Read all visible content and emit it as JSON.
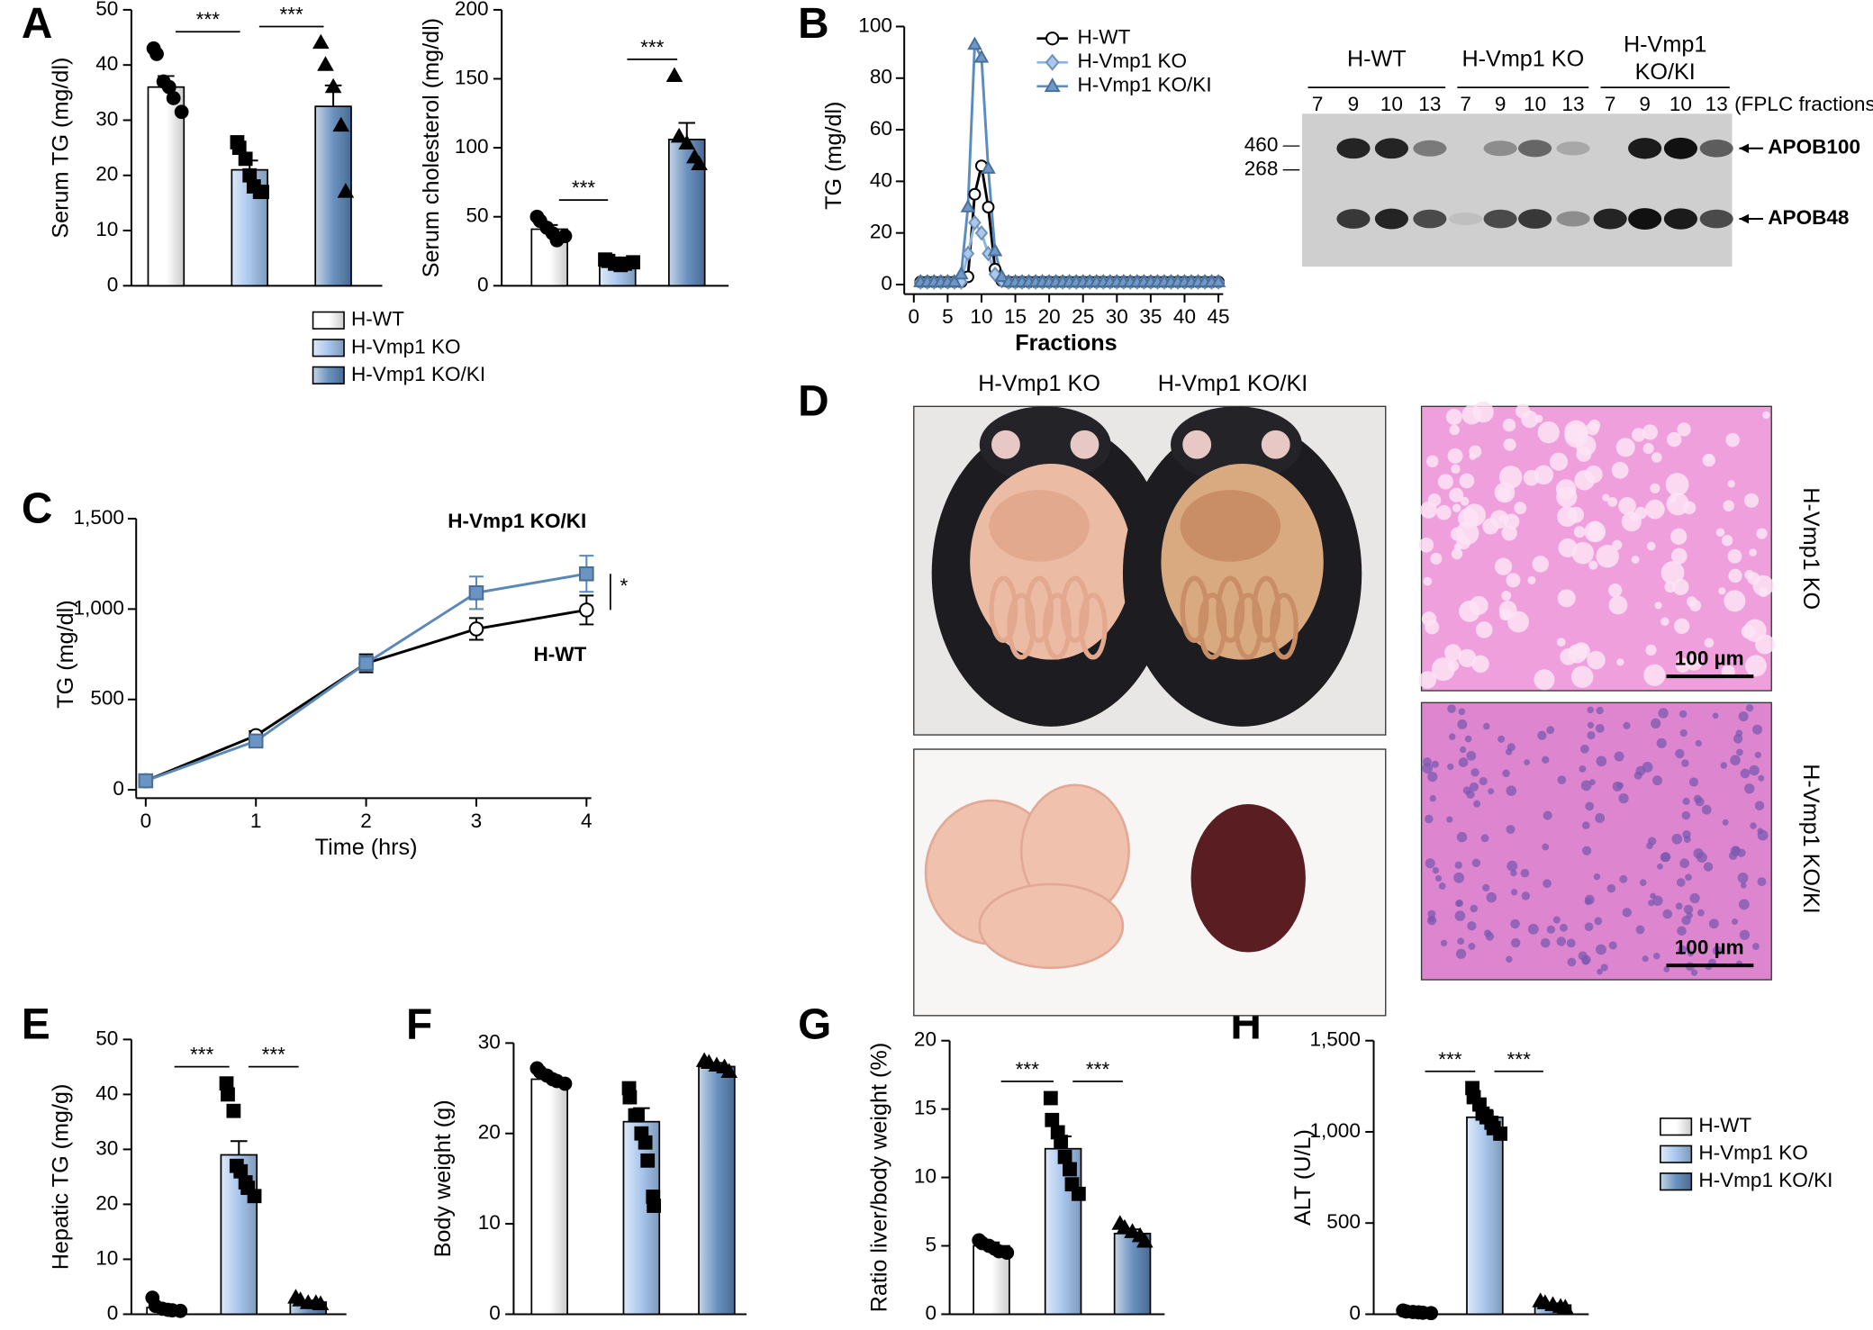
{
  "chart_data": [
    {
      "type": "bar",
      "label": "A",
      "ylabel": "Serum TG (mg/dl)",
      "ylim": [
        0,
        50
      ],
      "yticks": [
        0,
        10,
        20,
        30,
        40,
        50
      ],
      "colors": [
        "#ffffff",
        "#9ec0ea",
        "#5a86b8"
      ],
      "values": [
        36,
        21,
        32.5
      ],
      "errors": [
        2,
        1.7,
        3.8
      ],
      "points": [
        [
          43,
          42,
          37,
          36,
          34,
          31.5
        ],
        [
          26,
          25,
          23,
          20,
          18,
          17,
          17
        ],
        [
          44,
          40,
          36,
          29,
          17
        ]
      ],
      "annotations": [
        "***",
        "***"
      ],
      "legend": [
        "H-WT",
        "H-Vmp1 KO",
        "H-Vmp1 KO/KI"
      ]
    },
    {
      "type": "bar",
      "ylabel": "Serum cholesterol (mg/dl)",
      "ylim": [
        0,
        200
      ],
      "yticks": [
        0,
        50,
        100,
        150,
        200
      ],
      "colors": [
        "#ffffff",
        "#9ec0ea",
        "#5a86b8"
      ],
      "values": [
        41,
        16,
        106
      ],
      "errors": [
        3,
        1,
        12
      ],
      "points": [
        [
          50,
          47,
          42,
          38,
          33,
          36
        ],
        [
          19,
          18,
          16,
          15,
          16,
          17
        ],
        [
          152,
          108,
          103,
          93,
          88
        ]
      ],
      "annotations": [
        "***",
        "***"
      ]
    },
    {
      "type": "line",
      "label": "B",
      "ylabel": "TG (mg/dl)",
      "xlabel": "Fractions",
      "xlim": [
        0,
        45
      ],
      "xticks": [
        0,
        5,
        10,
        15,
        20,
        25,
        30,
        35,
        40,
        45
      ],
      "ylim": [
        0,
        100
      ],
      "yticks": [
        0,
        20,
        40,
        60,
        80,
        100
      ],
      "legend": "upper-left",
      "x": [
        1,
        2,
        3,
        4,
        5,
        6,
        7,
        8,
        9,
        10,
        11,
        12,
        13,
        14,
        15,
        16,
        17,
        18,
        19,
        20,
        21,
        22,
        23,
        24,
        25,
        26,
        27,
        28,
        29,
        30,
        31,
        32,
        33,
        34,
        35,
        36,
        37,
        38,
        39,
        40,
        41,
        42,
        43,
        44,
        45
      ],
      "series": [
        {
          "name": "H-WT",
          "color": "#000000",
          "marker": "circle",
          "marker_fill": "#ffffff",
          "values": [
            1,
            1,
            1,
            1,
            1,
            1,
            1,
            3,
            35,
            46,
            30,
            6,
            1.5,
            1,
            1,
            1,
            1,
            1,
            1,
            1,
            1,
            1,
            1,
            1,
            1,
            1,
            1,
            1,
            1,
            1,
            1,
            1,
            1,
            1,
            1,
            1,
            1,
            1,
            1,
            1,
            1,
            1,
            1,
            1,
            1
          ]
        },
        {
          "name": "H-Vmp1 KO",
          "color": "#8db4e2",
          "marker": "diamond",
          "marker_fill": "#a9c8ee",
          "values": [
            1,
            1,
            1,
            1,
            1,
            1,
            1,
            12,
            24,
            20,
            12,
            4,
            1.5,
            1,
            1,
            1,
            1,
            1,
            1,
            1,
            1,
            1,
            1,
            1,
            1,
            1,
            1,
            1,
            1,
            1,
            1,
            1,
            1,
            1,
            1,
            1,
            1,
            1,
            1,
            1,
            1,
            1,
            1,
            1,
            1
          ]
        },
        {
          "name": "H-Vmp1 KO/KI",
          "color": "#5b8cc0",
          "marker": "triangle",
          "marker_fill": "#6f98c6",
          "values": [
            1,
            1,
            1,
            1,
            1,
            1,
            4,
            30,
            93,
            88,
            45,
            13,
            3,
            1,
            1,
            1,
            1,
            1,
            1,
            1,
            1,
            1,
            1,
            1,
            1,
            1,
            1,
            1,
            1,
            1,
            1,
            1,
            1,
            1,
            1,
            1,
            1,
            1,
            1,
            1,
            1,
            1,
            1,
            1,
            1
          ]
        }
      ]
    },
    {
      "type": "line",
      "label": "C",
      "ylabel": "TG (mg/dl)",
      "xlabel": "Time (hrs)",
      "xlim": [
        0,
        4
      ],
      "xticks": [
        0,
        1,
        2,
        3,
        4
      ],
      "ylim": [
        0,
        1500
      ],
      "yticks": [
        0,
        500,
        {
          "value": 1000,
          "label": "1,000"
        },
        {
          "value": 1500,
          "label": "1,500"
        }
      ],
      "legend": "direct",
      "annotation": "*",
      "x": [
        0,
        1,
        2,
        3,
        4
      ],
      "series": [
        {
          "name": "H-WT",
          "color": "#000000",
          "marker": "circle",
          "marker_fill": "#ffffff",
          "values": [
            50,
            300,
            700,
            890,
            995
          ],
          "errors": [
            10,
            25,
            50,
            60,
            80
          ]
        },
        {
          "name": "H-Vmp1 KO/KI",
          "color": "#5b88b8",
          "marker": "square",
          "marker_fill": "#6a95c2",
          "values": [
            50,
            270,
            700,
            1090,
            1195
          ],
          "errors": [
            10,
            20,
            40,
            90,
            100
          ]
        }
      ]
    },
    {
      "type": "bar",
      "label": "E",
      "ylabel": "Hepatic TG (mg/g)",
      "ylim": [
        0,
        50
      ],
      "yticks": [
        0,
        10,
        20,
        30,
        40,
        50
      ],
      "colors": [
        "#ffffff",
        "#9ec0ea",
        "#5a86b8"
      ],
      "values": [
        1.2,
        29,
        2.2
      ],
      "errors": [
        0.3,
        2.5,
        0.3
      ],
      "points": [
        [
          3,
          1.5,
          1,
          0.8,
          0.7,
          0.6
        ],
        [
          42,
          40,
          37,
          27,
          26,
          24,
          23,
          21.5
        ],
        [
          3,
          2.5,
          2,
          2,
          1.8
        ]
      ],
      "annotations": [
        "***",
        "***"
      ]
    },
    {
      "type": "bar",
      "label": "F",
      "ylabel": "Body weight (g)",
      "ylim": [
        0,
        30
      ],
      "yticks": [
        0,
        10,
        20,
        30
      ],
      "colors": [
        "#ffffff",
        "#9ec0ea",
        "#5a86b8"
      ],
      "values": [
        26,
        21.3,
        27.4
      ],
      "errors": [
        0.4,
        1.5,
        0.4
      ],
      "points": [
        [
          27.2,
          26.8,
          26.4,
          26,
          25.8,
          25.5
        ],
        [
          25,
          24,
          22,
          22,
          20,
          19,
          17,
          13,
          12
        ],
        [
          28,
          27.8,
          27.5,
          27.3,
          26.8
        ]
      ]
    },
    {
      "type": "bar",
      "label": "G",
      "ylabel": "Ratio liver/body weight (%)",
      "ylim": [
        0,
        20
      ],
      "yticks": [
        0,
        5,
        10,
        15,
        20
      ],
      "colors": [
        "#ffffff",
        "#9ec0ea",
        "#5a86b8"
      ],
      "values": [
        5,
        12.1,
        5.9
      ],
      "errors": [
        0.25,
        0.9,
        0.3
      ],
      "points": [
        [
          5.4,
          5.2,
          5,
          4.8,
          4.6,
          4.5
        ],
        [
          15.8,
          14.2,
          13.3,
          12.6,
          11.5,
          10.6,
          9.5,
          8.8
        ],
        [
          6.6,
          6.3,
          6,
          5.7,
          5.3
        ]
      ],
      "annotations": [
        "***",
        "***"
      ]
    },
    {
      "type": "bar",
      "label": "H",
      "ylabel": "ALT (U/L)",
      "ylim": [
        0,
        1500
      ],
      "yticks": [
        0,
        500,
        {
          "value": 1000,
          "label": "1,000"
        },
        {
          "value": 1500,
          "label": "1,500"
        }
      ],
      "colors": [
        "#ffffff",
        "#9ec0ea",
        "#5a86b8"
      ],
      "values": [
        15,
        1080,
        50
      ],
      "errors": [
        3,
        40,
        10
      ],
      "points": [
        [
          20,
          15,
          12,
          10,
          8,
          6
        ],
        [
          1240,
          1190,
          1150,
          1100,
          1080,
          1050,
          1020,
          990
        ],
        [
          70,
          60,
          50,
          40,
          35
        ]
      ],
      "annotations": [
        "***",
        "***"
      ],
      "legend": [
        "H-WT",
        "H-Vmp1 KO",
        "H-Vmp1 KO/KI"
      ]
    }
  ],
  "blot": {
    "groups": [
      "H-WT",
      "H-Vmp1 KO",
      "H-Vmp1 KO/KI"
    ],
    "lanes": [
      7,
      9,
      10,
      13,
      7,
      9,
      10,
      13,
      7,
      9,
      10,
      13
    ],
    "lanes_note": "(FPLC fractions)",
    "size_markers": [
      460,
      268
    ],
    "bands": [
      "APOB100",
      "APOB48"
    ]
  },
  "photos": {
    "label": "D",
    "top_labels": [
      "H-Vmp1 KO",
      "H-Vmp1 KO/KI"
    ],
    "scale_bars": [
      "100 µm",
      "100 µm"
    ],
    "side_labels": [
      "H-Vmp1 KO",
      "H-Vmp1 KO/KI"
    ]
  }
}
